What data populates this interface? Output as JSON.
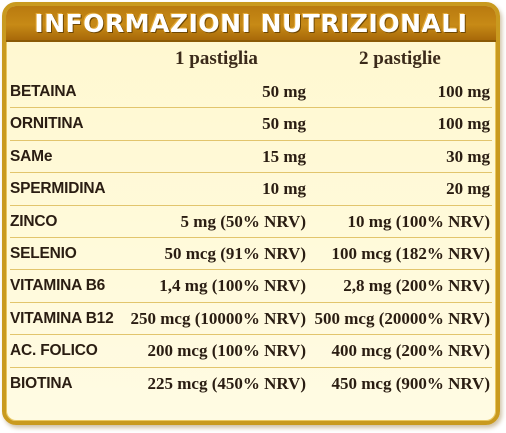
{
  "title": "INFORMAZIONI NUTRIZIONALI",
  "columns": [
    "1 pastiglia",
    "2 pastiglie"
  ],
  "rows": [
    {
      "name": "BETAINA",
      "one": "50 mg",
      "two": "100 mg"
    },
    {
      "name": "ORNITINA",
      "one": "50 mg",
      "two": "100 mg"
    },
    {
      "name": "SAMe",
      "one": "15 mg",
      "two": "30 mg"
    },
    {
      "name": "SPERMIDINA",
      "one": "10 mg",
      "two": "20 mg"
    },
    {
      "name": "ZINCO",
      "one": "5 mg (50% NRV)",
      "two": "10 mg (100% NRV)"
    },
    {
      "name": "SELENIO",
      "one": "50 mcg (91% NRV)",
      "two": "100 mcg (182% NRV)"
    },
    {
      "name": "VITAMINA B6",
      "one": "1,4 mg (100% NRV)",
      "two": "2,8 mg (200% NRV)"
    },
    {
      "name": "VITAMINA B12",
      "one": "250 mcg (10000% NRV)",
      "two": "500 mcg (20000% NRV)"
    },
    {
      "name": "AC. FOLICO",
      "one": "200 mcg (100% NRV)",
      "two": "400 mcg (200% NRV)"
    },
    {
      "name": "BIOTINA",
      "one": "225 mcg (450% NRV)",
      "two": "450 mcg (900% NRV)"
    }
  ]
}
